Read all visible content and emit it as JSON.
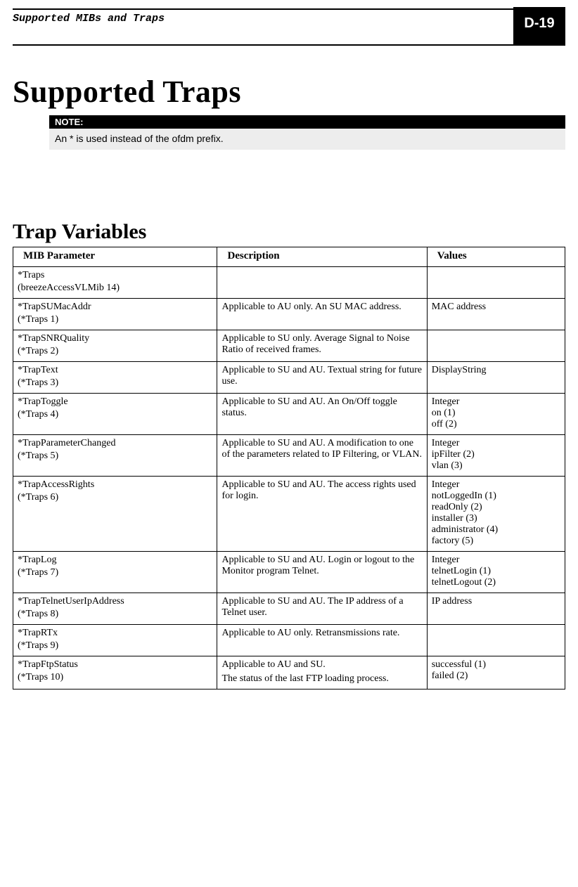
{
  "header": {
    "doc_section_title": "Supported MIBs and Traps",
    "page_label": "D-19"
  },
  "titles": {
    "main": "Supported Traps",
    "section": "Trap Variables"
  },
  "note": {
    "label": "NOTE:",
    "text": "An * is used instead of the ofdm prefix."
  },
  "table": {
    "columns": {
      "mib": "MIB Parameter",
      "desc": "Description",
      "values": "Values"
    },
    "rows": [
      {
        "mib_name": "*Traps",
        "mib_sub": " (breezeAccessVLMib 14)",
        "desc": "",
        "values": [
          ""
        ]
      },
      {
        "mib_name": "*TrapSUMacAddr",
        "mib_sub": "(*Traps 1)",
        "desc": "Applicable to AU only. An SU MAC address.",
        "values": [
          "MAC address"
        ]
      },
      {
        "mib_name": "*TrapSNRQuality",
        "mib_sub": "(*Traps 2)",
        "desc": "Applicable to SU only. Average Signal to Noise Ratio of received frames.",
        "values": [
          ""
        ]
      },
      {
        "mib_name": "*TrapText",
        "mib_sub": "(*Traps 3)",
        "desc": "Applicable to SU and AU. Textual string for future use.",
        "values": [
          "DisplayString"
        ]
      },
      {
        "mib_name": "*TrapToggle",
        "mib_sub": "(*Traps 4)",
        "desc": "Applicable to SU and AU. An On/Off toggle status.",
        "values": [
          "Integer",
          "on (1)",
          "off (2)"
        ]
      },
      {
        "mib_name": "*TrapParameterChanged",
        "mib_sub": "(*Traps 5)",
        "desc": "Applicable to SU and AU. A modification to one of the parameters related to IP Filtering, or VLAN.",
        "values": [
          "Integer",
          "ipFilter (2)",
          "vlan (3)"
        ]
      },
      {
        "mib_name": "*TrapAccessRights",
        "mib_sub": "(*Traps 6)",
        "desc": "Applicable to SU and AU. The access rights used for login.",
        "values": [
          "Integer",
          "notLoggedIn (1)",
          "readOnly (2)",
          "installer (3)",
          "administrator (4)",
          "factory (5)"
        ]
      },
      {
        "mib_name": "*TrapLog",
        "mib_sub": "(*Traps 7)",
        "desc": "Applicable to SU and AU. Login or logout to the Monitor program Telnet.",
        "values": [
          "Integer",
          "telnetLogin (1)",
          "telnetLogout (2)"
        ]
      },
      {
        "mib_name": "*TrapTelnetUserIpAddress",
        "mib_sub": "(*Traps 8)",
        "desc": "Applicable to SU and AU. The IP address of a Telnet user.",
        "values": [
          "IP address"
        ]
      },
      {
        "mib_name": "*TrapRTx",
        "mib_sub": "(*Traps 9)",
        "desc": "Applicable to AU only. Retransmissions rate.",
        "values": [
          ""
        ]
      },
      {
        "mib_name": "*TrapFtpStatus",
        "mib_sub": "(*Traps 10)",
        "desc": "Applicable to AU and SU.\nThe status of the last FTP loading process.",
        "values": [
          "successful (1)",
          "failed (2)"
        ]
      }
    ]
  }
}
